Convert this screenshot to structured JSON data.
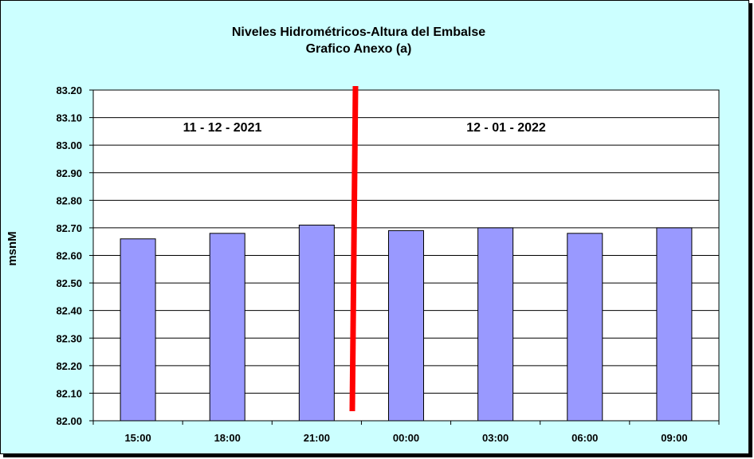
{
  "chart_data": {
    "type": "bar",
    "title": "Niveles Hidrométricos-Altura del Embalse",
    "subtitle": "Grafico Anexo (a)",
    "xlabel": "",
    "ylabel": "msnM",
    "categories": [
      "15:00",
      "18:00",
      "21:00",
      "00:00",
      "03:00",
      "06:00",
      "09:00"
    ],
    "values": [
      82.66,
      82.68,
      82.71,
      82.69,
      82.7,
      82.68,
      82.7
    ],
    "ylim": [
      82.0,
      83.2
    ],
    "yticks": [
      "82.00",
      "82.10",
      "82.20",
      "82.30",
      "82.40",
      "82.50",
      "82.60",
      "82.70",
      "82.80",
      "82.90",
      "83.00",
      "83.10",
      "83.20"
    ],
    "grid": true,
    "legend": "none",
    "bar_color": "#9999ff",
    "plot_background": "#ffffff",
    "chart_background": "#ccffff",
    "divider_color": "#ff0000",
    "annotations": [
      {
        "text": "11 - 12 - 2021",
        "group": "left"
      },
      {
        "text": "12 - 01 - 2022",
        "group": "right"
      }
    ]
  }
}
